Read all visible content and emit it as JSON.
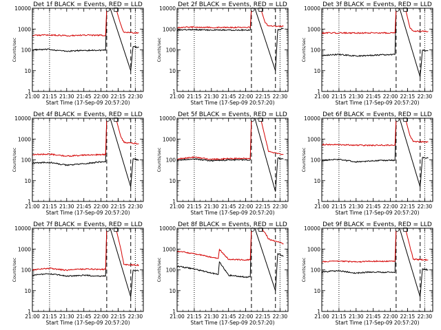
{
  "figure": {
    "panels_layout": "3x3 grid",
    "line_colors": {
      "events": "#000000",
      "lld": "#d40000",
      "markers": "#000000"
    }
  },
  "chart_data": [
    {
      "type": "line",
      "title": "Det 1f BLACK = Events, RED = LLD",
      "xlabel": "Start Time (17-Sep-09 20:57:20)",
      "ylabel": "Counts/sec",
      "y_scale": "log",
      "ylim": [
        1,
        10000
      ],
      "y_ticks": [
        "1",
        "10",
        "100",
        "1000",
        "10000"
      ],
      "x_ticks": [
        "21:00",
        "21:15",
        "21:30",
        "21:45",
        "22:00",
        "22:15",
        "22:30"
      ],
      "dotted_lines": [
        "21:15",
        "22:30"
      ],
      "dashed_lines": [
        "22:05",
        "22:26"
      ],
      "series": [
        {
          "name": "Events",
          "color": "#000000",
          "x": [
            "21:00",
            "21:15",
            "21:30",
            "21:45",
            "22:00",
            "22:04",
            "22:05",
            "22:08",
            "22:26",
            "22:28",
            "22:33"
          ],
          "y": [
            100,
            105,
            85,
            95,
            95,
            95,
            10000,
            10000,
            10,
            140,
            130
          ]
        },
        {
          "name": "LLD",
          "color": "#d40000",
          "x": [
            "21:00",
            "21:15",
            "21:30",
            "21:45",
            "22:00",
            "22:04",
            "22:05",
            "22:13",
            "22:17",
            "22:20",
            "22:33"
          ],
          "y": [
            500,
            520,
            480,
            510,
            500,
            500,
            10000,
            10000,
            1800,
            700,
            650
          ]
        }
      ]
    },
    {
      "type": "line",
      "title": "Det 2f BLACK = Events, RED = LLD",
      "xlabel": "Start Time (17-Sep-09 20:57:20)",
      "ylabel": "Counts/sec",
      "y_scale": "log",
      "ylim": [
        1,
        10000
      ],
      "y_ticks": [
        "1",
        "10",
        "100",
        "1000",
        "10000"
      ],
      "x_ticks": [
        "21:00",
        "21:15",
        "21:30",
        "21:45",
        "22:00",
        "22:15",
        "22:30"
      ],
      "dotted_lines": [
        "21:15",
        "22:30"
      ],
      "dashed_lines": [
        "22:05",
        "22:26"
      ],
      "series": [
        {
          "name": "Events",
          "color": "#000000",
          "x": [
            "21:00",
            "21:15",
            "21:30",
            "21:45",
            "22:00",
            "22:04",
            "22:05",
            "22:08",
            "22:26",
            "22:28",
            "22:33"
          ],
          "y": [
            900,
            950,
            880,
            900,
            900,
            900,
            10000,
            10000,
            10,
            900,
            1100
          ]
        },
        {
          "name": "LLD",
          "color": "#d40000",
          "x": [
            "21:00",
            "21:15",
            "21:30",
            "21:45",
            "22:00",
            "22:04",
            "22:05",
            "22:13",
            "22:17",
            "22:20",
            "22:33"
          ],
          "y": [
            1200,
            1250,
            1200,
            1200,
            1200,
            1200,
            10000,
            10000,
            2000,
            1400,
            1350
          ]
        }
      ]
    },
    {
      "type": "line",
      "title": "Det 3f BLACK = Events, RED = LLD",
      "xlabel": "Start Time (17-Sep-09 20:57:20)",
      "ylabel": "Counts/sec",
      "y_scale": "log",
      "ylim": [
        1,
        10000
      ],
      "y_ticks": [
        "1",
        "10",
        "100",
        "1000",
        "10000"
      ],
      "x_ticks": [
        "21:00",
        "21:15",
        "21:30",
        "21:45",
        "22:00",
        "22:15",
        "22:30"
      ],
      "dotted_lines": [
        "21:15",
        "22:30"
      ],
      "dashed_lines": [
        "22:05",
        "22:26"
      ],
      "series": [
        {
          "name": "Events",
          "color": "#000000",
          "x": [
            "21:00",
            "21:15",
            "21:30",
            "21:45",
            "22:00",
            "22:04",
            "22:05",
            "22:08",
            "22:26",
            "22:28",
            "22:33"
          ],
          "y": [
            55,
            60,
            50,
            55,
            60,
            60,
            10000,
            10000,
            5,
            95,
            90
          ]
        },
        {
          "name": "LLD",
          "color": "#d40000",
          "x": [
            "21:00",
            "21:15",
            "21:30",
            "21:45",
            "22:00",
            "22:04",
            "22:05",
            "22:13",
            "22:17",
            "22:20",
            "22:33"
          ],
          "y": [
            650,
            650,
            640,
            650,
            650,
            650,
            10000,
            10000,
            1200,
            800,
            780
          ]
        }
      ]
    },
    {
      "type": "line",
      "title": "Det 4f BLACK = Events, RED = LLD",
      "xlabel": "Start Time (17-Sep-09 20:57:20)",
      "ylabel": "Counts/sec",
      "y_scale": "log",
      "ylim": [
        1,
        10000
      ],
      "y_ticks": [
        "1",
        "10",
        "100",
        "1000",
        "10000"
      ],
      "x_ticks": [
        "21:00",
        "21:15",
        "21:30",
        "21:45",
        "22:00",
        "22:15",
        "22:30"
      ],
      "dotted_lines": [
        "21:15",
        "22:30"
      ],
      "dashed_lines": [
        "22:05",
        "22:26"
      ],
      "series": [
        {
          "name": "Events",
          "color": "#000000",
          "x": [
            "21:00",
            "21:15",
            "21:30",
            "21:45",
            "22:00",
            "22:04",
            "22:05",
            "22:08",
            "22:26",
            "22:28",
            "22:33"
          ],
          "y": [
            70,
            75,
            55,
            65,
            80,
            80,
            10000,
            10000,
            5,
            110,
            100
          ]
        },
        {
          "name": "LLD",
          "color": "#d40000",
          "x": [
            "21:00",
            "21:15",
            "21:30",
            "21:45",
            "22:00",
            "22:04",
            "22:05",
            "22:13",
            "22:17",
            "22:20",
            "22:33"
          ],
          "y": [
            180,
            190,
            150,
            170,
            180,
            180,
            10000,
            10000,
            1500,
            700,
            600
          ]
        }
      ]
    },
    {
      "type": "line",
      "title": "Det 5f BLACK = Events, RED = LLD",
      "xlabel": "Start Time (17-Sep-09 20:57:20)",
      "ylabel": "Counts/sec",
      "y_scale": "log",
      "ylim": [
        1,
        10000
      ],
      "y_ticks": [
        "1",
        "10",
        "100",
        "1000",
        "10000"
      ],
      "x_ticks": [
        "21:00",
        "21:15",
        "21:30",
        "21:45",
        "22:00",
        "22:15",
        "22:30"
      ],
      "dotted_lines": [
        "21:15",
        "22:30"
      ],
      "dashed_lines": [
        "22:05",
        "22:26"
      ],
      "series": [
        {
          "name": "Events",
          "color": "#000000",
          "x": [
            "21:00",
            "21:15",
            "21:30",
            "21:45",
            "22:00",
            "22:04",
            "22:05",
            "22:08",
            "22:26",
            "22:28",
            "22:33"
          ],
          "y": [
            95,
            110,
            90,
            100,
            100,
            100,
            10000,
            10000,
            3,
            120,
            110
          ]
        },
        {
          "name": "LLD",
          "color": "#d40000",
          "x": [
            "21:00",
            "21:15",
            "21:30",
            "21:45",
            "22:00",
            "22:04",
            "22:05",
            "22:13",
            "22:17",
            "22:20",
            "22:33"
          ],
          "y": [
            110,
            135,
            105,
            115,
            115,
            115,
            10000,
            10000,
            1200,
            250,
            180
          ]
        }
      ]
    },
    {
      "type": "line",
      "title": "Det 6f BLACK = Events, RED = LLD",
      "xlabel": "Start Time (17-Sep-09 20:57:20)",
      "ylabel": "Counts/sec",
      "y_scale": "log",
      "ylim": [
        1,
        10000
      ],
      "y_ticks": [
        "1",
        "10",
        "100",
        "1000",
        "10000"
      ],
      "x_ticks": [
        "21:00",
        "21:15",
        "21:30",
        "21:45",
        "22:00",
        "22:15",
        "22:30"
      ],
      "dotted_lines": [
        "21:15",
        "22:30"
      ],
      "dashed_lines": [
        "22:05",
        "22:26"
      ],
      "series": [
        {
          "name": "Events",
          "color": "#000000",
          "x": [
            "21:00",
            "21:15",
            "21:30",
            "21:45",
            "22:00",
            "22:04",
            "22:05",
            "22:08",
            "22:26",
            "22:28",
            "22:33"
          ],
          "y": [
            95,
            105,
            80,
            90,
            95,
            95,
            10000,
            10000,
            5,
            130,
            120
          ]
        },
        {
          "name": "LLD",
          "color": "#d40000",
          "x": [
            "21:00",
            "21:15",
            "21:30",
            "21:45",
            "22:00",
            "22:04",
            "22:05",
            "22:13",
            "22:17",
            "22:20",
            "22:33"
          ],
          "y": [
            550,
            540,
            500,
            500,
            510,
            510,
            10000,
            10000,
            1500,
            750,
            720
          ]
        }
      ]
    },
    {
      "type": "line",
      "title": "Det 7f BLACK = Events, RED = LLD",
      "xlabel": "Start Time (17-Sep-09 20:57:20)",
      "ylabel": "Counts/sec",
      "y_scale": "log",
      "ylim": [
        1,
        10000
      ],
      "y_ticks": [
        "1",
        "10",
        "100",
        "1000",
        "10000"
      ],
      "x_ticks": [
        "21:00",
        "21:15",
        "21:30",
        "21:45",
        "22:00",
        "22:15",
        "22:30"
      ],
      "dotted_lines": [
        "21:15",
        "22:30"
      ],
      "dashed_lines": [
        "22:05",
        "22:26"
      ],
      "series": [
        {
          "name": "Events",
          "color": "#000000",
          "x": [
            "21:00",
            "21:15",
            "21:30",
            "21:45",
            "22:00",
            "22:04",
            "22:05",
            "22:08",
            "22:26",
            "22:28",
            "22:33"
          ],
          "y": [
            55,
            65,
            50,
            55,
            50,
            50,
            10000,
            10000,
            5,
            95,
            90
          ]
        },
        {
          "name": "LLD",
          "color": "#d40000",
          "x": [
            "21:00",
            "21:15",
            "21:30",
            "21:45",
            "22:00",
            "22:04",
            "22:05",
            "22:13",
            "22:17",
            "22:20",
            "22:33"
          ],
          "y": [
            100,
            120,
            95,
            110,
            105,
            105,
            10000,
            10000,
            1200,
            180,
            170
          ]
        }
      ]
    },
    {
      "type": "line",
      "title": "Det 8f BLACK = Events, RED = LLD",
      "xlabel": "Start Time (17-Sep-09 20:57:20)",
      "ylabel": "Counts/sec",
      "y_scale": "log",
      "ylim": [
        1,
        10000
      ],
      "y_ticks": [
        "1",
        "10",
        "100",
        "1000",
        "10000"
      ],
      "x_ticks": [
        "21:00",
        "21:15",
        "21:30",
        "21:45",
        "22:00",
        "22:15",
        "22:30"
      ],
      "dotted_lines": [
        "21:15",
        "22:30"
      ],
      "dashed_lines": [
        "22:05",
        "22:26"
      ],
      "series": [
        {
          "name": "Events",
          "color": "#000000",
          "x": [
            "21:00",
            "21:15",
            "21:30",
            "21:36",
            "21:37",
            "21:45",
            "22:00",
            "22:04",
            "22:05",
            "22:08",
            "22:26",
            "22:28",
            "22:33"
          ],
          "y": [
            150,
            110,
            70,
            60,
            240,
            55,
            45,
            45,
            10000,
            10000,
            10,
            600,
            450
          ]
        },
        {
          "name": "LLD",
          "color": "#d40000",
          "x": [
            "21:00",
            "21:15",
            "21:30",
            "21:36",
            "21:37",
            "21:45",
            "22:00",
            "22:04",
            "22:05",
            "22:13",
            "22:17",
            "22:20",
            "22:33"
          ],
          "y": [
            800,
            600,
            400,
            350,
            950,
            320,
            300,
            300,
            10000,
            10000,
            6000,
            3000,
            1800
          ]
        }
      ]
    },
    {
      "type": "line",
      "title": "Det 9f BLACK = Events, RED = LLD",
      "xlabel": "Start Time (17-Sep-09 20:57:20)",
      "ylabel": "Counts/sec",
      "y_scale": "log",
      "ylim": [
        1,
        10000
      ],
      "y_ticks": [
        "1",
        "10",
        "100",
        "1000",
        "10000"
      ],
      "x_ticks": [
        "21:00",
        "21:15",
        "21:30",
        "21:45",
        "22:00",
        "22:15",
        "22:30"
      ],
      "dotted_lines": [
        "21:15",
        "22:30"
      ],
      "dashed_lines": [
        "22:05",
        "22:26"
      ],
      "series": [
        {
          "name": "Events",
          "color": "#000000",
          "x": [
            "21:00",
            "21:15",
            "21:30",
            "21:45",
            "22:00",
            "22:04",
            "22:05",
            "22:08",
            "22:26",
            "22:28",
            "22:33"
          ],
          "y": [
            80,
            90,
            70,
            80,
            75,
            75,
            10000,
            10000,
            5,
            110,
            100
          ]
        },
        {
          "name": "LLD",
          "color": "#d40000",
          "x": [
            "21:00",
            "21:15",
            "21:30",
            "21:45",
            "22:00",
            "22:04",
            "22:05",
            "22:13",
            "22:17",
            "22:20",
            "22:33"
          ],
          "y": [
            250,
            260,
            240,
            260,
            260,
            260,
            10000,
            10000,
            1400,
            320,
            300
          ]
        }
      ]
    }
  ]
}
